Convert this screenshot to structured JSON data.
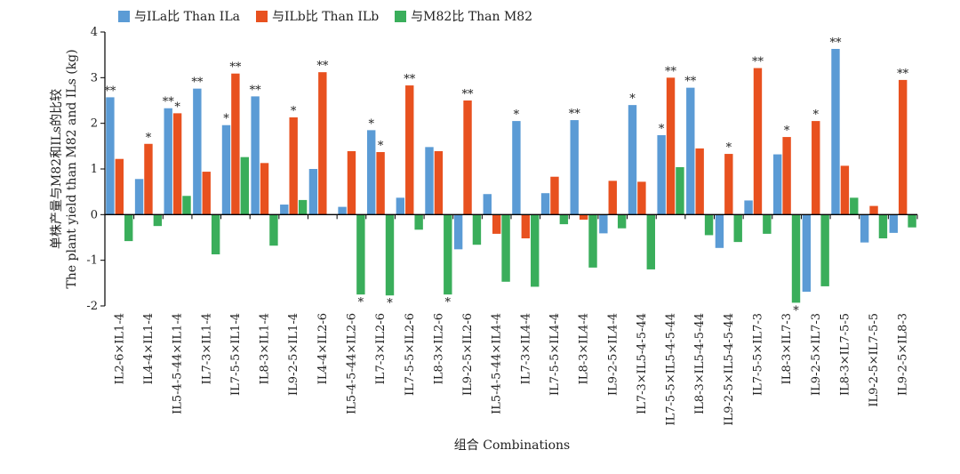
{
  "chart_data": {
    "type": "bar",
    "title": "",
    "legend": {
      "placement": "top-left",
      "items": [
        {
          "label": "与ILa比 Than ILa",
          "color": "#5b9bd5"
        },
        {
          "label": "与ILb比 Than ILb",
          "color": "#e8511f"
        },
        {
          "label": "与M82比 Than M82",
          "color": "#3aae5b"
        }
      ]
    },
    "ylabel_cn": "单株产量与M82和ILs的比较",
    "ylabel_en": "The plant yield than M82 and ILs (kg)",
    "xlabel": "组合 Combinations",
    "ylim": [
      -2,
      4
    ],
    "yticks": [
      "-2",
      "-1",
      "0",
      "1",
      "2",
      "3",
      "4"
    ],
    "categories": [
      "IL2-6×IL1-4",
      "IL4-4×IL1-4",
      "IL5-4-5-44×IL1-4",
      "IL7-3×IL1-4",
      "IL7-5-5×IL1-4",
      "IL8-3×IL1-4",
      "IL9-2-5×IL1-4",
      "IL4-4×IL2-6",
      "IL5-4-5-44×IL2-6",
      "IL7-3×IL2-6",
      "IL7-5-5×IL2-6",
      "IL8-3×IL2-6",
      "IL9-2-5×IL2-6",
      "IL5-4-5-44×IL4-4",
      "IL7-3×IL4-4",
      "IL7-5-5×IL4-4",
      "IL8-3×IL4-4",
      "IL9-2-5×IL4-4",
      "IL7-3×IL5-4-5-44",
      "IL7-5-5×IL5-4-5-44",
      "IL8-3×IL5-4-5-44",
      "IL9-2-5×IL5-4-5-44",
      "IL7-5-5×IL7-3",
      "IL8-3×IL7-3",
      "IL9-2-5×IL7-3",
      "IL8-3×IL7-5-5",
      "IL9-2-5×IL7-5-5",
      "IL9-2-5×IL8-3"
    ],
    "series": [
      {
        "name": "与ILa比 Than ILa",
        "color": "#5b9bd5",
        "values": [
          2.57,
          0.78,
          2.33,
          2.76,
          1.96,
          2.59,
          0.22,
          1.0,
          0.17,
          1.85,
          0.37,
          1.48,
          -0.76,
          0.45,
          2.05,
          0.47,
          2.07,
          -0.41,
          2.4,
          1.74,
          2.78,
          -0.73,
          0.31,
          1.32,
          -1.69,
          3.63,
          -0.61,
          -0.4
        ],
        "marks": [
          "**",
          "",
          "**",
          "**",
          "*",
          "**",
          "",
          "",
          "",
          "*",
          "",
          "",
          "",
          "",
          "*",
          "",
          "**",
          "",
          "*",
          "*",
          "**",
          "",
          "",
          "",
          "",
          "**",
          "",
          ""
        ]
      },
      {
        "name": "与ILb比 Than ILb",
        "color": "#e8511f",
        "values": [
          1.22,
          1.55,
          2.22,
          0.94,
          3.09,
          1.13,
          2.13,
          3.12,
          1.39,
          1.37,
          2.83,
          1.39,
          2.5,
          -0.42,
          -0.52,
          0.83,
          -0.11,
          0.74,
          0.72,
          3.0,
          1.45,
          1.33,
          3.21,
          1.7,
          2.05,
          1.07,
          0.19,
          2.95
        ],
        "marks": [
          "",
          "*",
          "*",
          "",
          "**",
          "",
          "*",
          "**",
          "",
          "*",
          "**",
          "",
          "**",
          "",
          "",
          "",
          "",
          "",
          "",
          "**",
          "",
          "*",
          "**",
          "*",
          "*",
          "",
          "",
          "**"
        ]
      },
      {
        "name": "与M82比 Than M82",
        "color": "#3aae5b",
        "values": [
          -0.58,
          -0.25,
          0.41,
          -0.87,
          1.26,
          -0.68,
          0.32,
          0.0,
          -1.75,
          -1.77,
          -0.33,
          -1.75,
          -0.66,
          -1.47,
          -1.58,
          -0.21,
          -1.16,
          -0.3,
          -1.2,
          1.04,
          -0.45,
          -0.6,
          -0.42,
          -1.93,
          -1.57,
          0.37,
          -0.52,
          -0.28
        ],
        "marks": [
          "",
          "",
          "",
          "",
          "",
          "",
          "",
          "",
          "*",
          "*",
          "",
          "*",
          "",
          "",
          "",
          "",
          "",
          "",
          "",
          "",
          "",
          "",
          "",
          "*",
          "",
          "",
          "",
          ""
        ]
      }
    ]
  }
}
